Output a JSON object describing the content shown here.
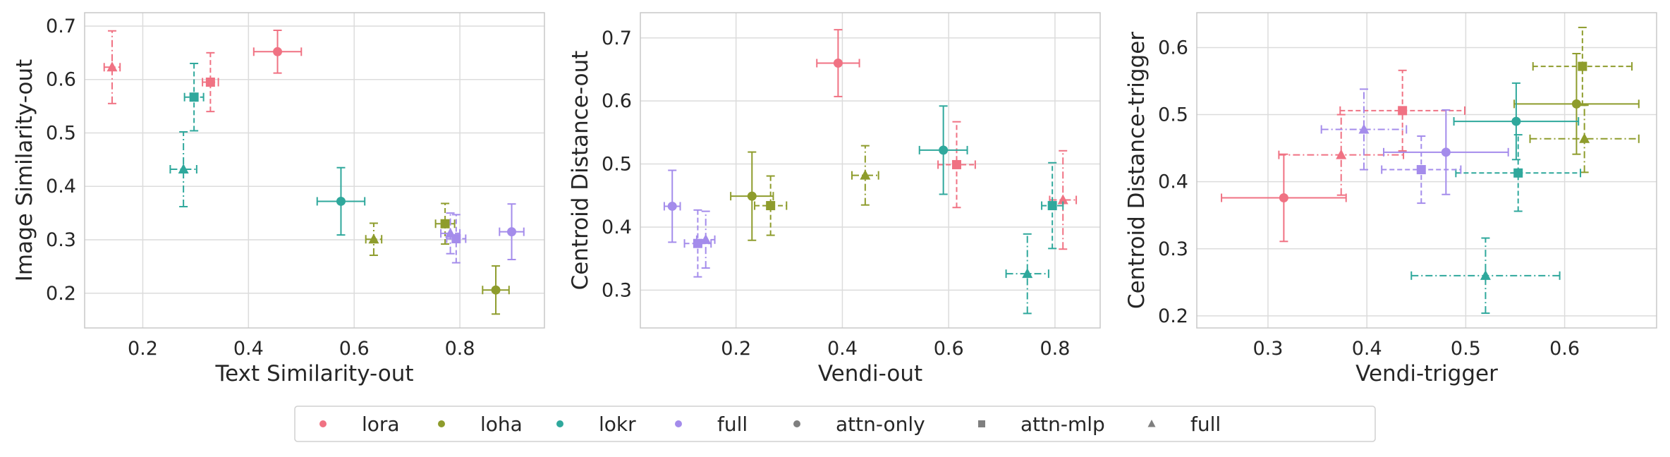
{
  "colors": {
    "lora": "#f07283",
    "loha": "#8e9c2c",
    "lokr": "#2fa89c",
    "full": "#a48ceb",
    "neutral": "#7f7f7f",
    "grid": "#dcdcdc",
    "frame": "#c8c8c8"
  },
  "legend": {
    "placement": "bottom-center",
    "entries": [
      {
        "label": "lora",
        "kind": "color",
        "key": "lora"
      },
      {
        "label": "loha",
        "kind": "color",
        "key": "loha"
      },
      {
        "label": "lokr",
        "kind": "color",
        "key": "lokr"
      },
      {
        "label": "full",
        "kind": "color",
        "key": "full"
      },
      {
        "label": "attn-only",
        "kind": "marker",
        "marker": "circle"
      },
      {
        "label": "attn-mlp",
        "kind": "marker",
        "marker": "square"
      },
      {
        "label": "full",
        "kind": "marker",
        "marker": "triangle"
      }
    ]
  },
  "chart_data": [
    {
      "type": "scatter",
      "xlabel": "Text Similarity-out",
      "ylabel": "Image Similarity-out",
      "xlim": [
        0.09,
        0.96
      ],
      "ylim": [
        0.135,
        0.725
      ],
      "xticks": [
        0.2,
        0.4,
        0.6,
        0.8
      ],
      "yticks": [
        0.2,
        0.3,
        0.4,
        0.5,
        0.6,
        0.7
      ],
      "grid": true,
      "points": [
        {
          "algo": "lora",
          "target": "attn-only",
          "x": 0.455,
          "y": 0.652,
          "xerr": 0.045,
          "yerr": 0.04
        },
        {
          "algo": "lora",
          "target": "attn-mlp",
          "x": 0.328,
          "y": 0.595,
          "xerr": 0.015,
          "yerr": 0.055
        },
        {
          "algo": "lora",
          "target": "full",
          "x": 0.142,
          "y": 0.623,
          "xerr": 0.015,
          "yerr": 0.068
        },
        {
          "algo": "loha",
          "target": "attn-only",
          "x": 0.868,
          "y": 0.206,
          "xerr": 0.025,
          "yerr": 0.045
        },
        {
          "algo": "loha",
          "target": "attn-mlp",
          "x": 0.772,
          "y": 0.33,
          "xerr": 0.018,
          "yerr": 0.038
        },
        {
          "algo": "loha",
          "target": "full",
          "x": 0.637,
          "y": 0.301,
          "xerr": 0.015,
          "yerr": 0.03
        },
        {
          "algo": "lokr",
          "target": "attn-only",
          "x": 0.575,
          "y": 0.372,
          "xerr": 0.045,
          "yerr": 0.063
        },
        {
          "algo": "lokr",
          "target": "attn-mlp",
          "x": 0.297,
          "y": 0.567,
          "xerr": 0.018,
          "yerr": 0.063
        },
        {
          "algo": "lokr",
          "target": "full",
          "x": 0.277,
          "y": 0.432,
          "xerr": 0.025,
          "yerr": 0.07
        },
        {
          "algo": "full",
          "target": "attn-only",
          "x": 0.898,
          "y": 0.315,
          "xerr": 0.023,
          "yerr": 0.052
        },
        {
          "algo": "full",
          "target": "attn-mlp",
          "x": 0.793,
          "y": 0.302,
          "xerr": 0.018,
          "yerr": 0.045
        },
        {
          "algo": "full",
          "target": "full",
          "x": 0.782,
          "y": 0.312,
          "xerr": 0.018,
          "yerr": 0.038
        }
      ]
    },
    {
      "type": "scatter",
      "xlabel": "Vendi-out",
      "ylabel": "Centroid Distance-out",
      "xlim": [
        0.02,
        0.885
      ],
      "ylim": [
        0.24,
        0.74
      ],
      "xticks": [
        0.2,
        0.4,
        0.6,
        0.8
      ],
      "yticks": [
        0.3,
        0.4,
        0.5,
        0.6,
        0.7
      ],
      "grid": true,
      "points": [
        {
          "algo": "lora",
          "target": "attn-only",
          "x": 0.392,
          "y": 0.66,
          "xerr": 0.04,
          "yerr": 0.053
        },
        {
          "algo": "lora",
          "target": "attn-mlp",
          "x": 0.615,
          "y": 0.499,
          "xerr": 0.035,
          "yerr": 0.068
        },
        {
          "algo": "lora",
          "target": "full",
          "x": 0.815,
          "y": 0.443,
          "xerr": 0.025,
          "yerr": 0.078
        },
        {
          "algo": "loha",
          "target": "attn-only",
          "x": 0.23,
          "y": 0.449,
          "xerr": 0.04,
          "yerr": 0.07
        },
        {
          "algo": "loha",
          "target": "attn-mlp",
          "x": 0.265,
          "y": 0.434,
          "xerr": 0.03,
          "yerr": 0.047
        },
        {
          "algo": "loha",
          "target": "full",
          "x": 0.443,
          "y": 0.482,
          "xerr": 0.025,
          "yerr": 0.047
        },
        {
          "algo": "lokr",
          "target": "attn-only",
          "x": 0.59,
          "y": 0.522,
          "xerr": 0.045,
          "yerr": 0.07
        },
        {
          "algo": "lokr",
          "target": "attn-mlp",
          "x": 0.795,
          "y": 0.434,
          "xerr": 0.02,
          "yerr": 0.068
        },
        {
          "algo": "lokr",
          "target": "full",
          "x": 0.748,
          "y": 0.326,
          "xerr": 0.04,
          "yerr": 0.063
        },
        {
          "algo": "full",
          "target": "attn-only",
          "x": 0.08,
          "y": 0.433,
          "xerr": 0.015,
          "yerr": 0.057
        },
        {
          "algo": "full",
          "target": "attn-mlp",
          "x": 0.128,
          "y": 0.374,
          "xerr": 0.025,
          "yerr": 0.053
        },
        {
          "algo": "full",
          "target": "full",
          "x": 0.143,
          "y": 0.38,
          "xerr": 0.017,
          "yerr": 0.045
        }
      ]
    },
    {
      "type": "scatter",
      "xlabel": "Vendi-trigger",
      "ylabel": "Centroid Distance-trigger",
      "xlim": [
        0.228,
        0.693
      ],
      "ylim": [
        0.182,
        0.652
      ],
      "xticks": [
        0.3,
        0.4,
        0.5,
        0.6
      ],
      "yticks": [
        0.2,
        0.3,
        0.4,
        0.5,
        0.6
      ],
      "grid": true,
      "points": [
        {
          "algo": "lora",
          "target": "attn-only",
          "x": 0.316,
          "y": 0.376,
          "xerr": 0.063,
          "yerr": 0.065
        },
        {
          "algo": "lora",
          "target": "attn-mlp",
          "x": 0.436,
          "y": 0.506,
          "xerr": 0.063,
          "yerr": 0.06
        },
        {
          "algo": "lora",
          "target": "full",
          "x": 0.374,
          "y": 0.44,
          "xerr": 0.063,
          "yerr": 0.06
        },
        {
          "algo": "loha",
          "target": "attn-only",
          "x": 0.612,
          "y": 0.516,
          "xerr": 0.063,
          "yerr": 0.075
        },
        {
          "algo": "loha",
          "target": "attn-mlp",
          "x": 0.618,
          "y": 0.572,
          "xerr": 0.05,
          "yerr": 0.058
        },
        {
          "algo": "loha",
          "target": "full",
          "x": 0.62,
          "y": 0.464,
          "xerr": 0.055,
          "yerr": 0.05
        },
        {
          "algo": "lokr",
          "target": "attn-only",
          "x": 0.551,
          "y": 0.49,
          "xerr": 0.063,
          "yerr": 0.057
        },
        {
          "algo": "lokr",
          "target": "attn-mlp",
          "x": 0.553,
          "y": 0.413,
          "xerr": 0.063,
          "yerr": 0.057
        },
        {
          "algo": "lokr",
          "target": "full",
          "x": 0.52,
          "y": 0.26,
          "xerr": 0.075,
          "yerr": 0.056
        },
        {
          "algo": "full",
          "target": "attn-only",
          "x": 0.48,
          "y": 0.444,
          "xerr": 0.063,
          "yerr": 0.063
        },
        {
          "algo": "full",
          "target": "attn-mlp",
          "x": 0.455,
          "y": 0.418,
          "xerr": 0.04,
          "yerr": 0.05
        },
        {
          "algo": "full",
          "target": "full",
          "x": 0.397,
          "y": 0.478,
          "xerr": 0.043,
          "yerr": 0.06
        }
      ]
    }
  ]
}
